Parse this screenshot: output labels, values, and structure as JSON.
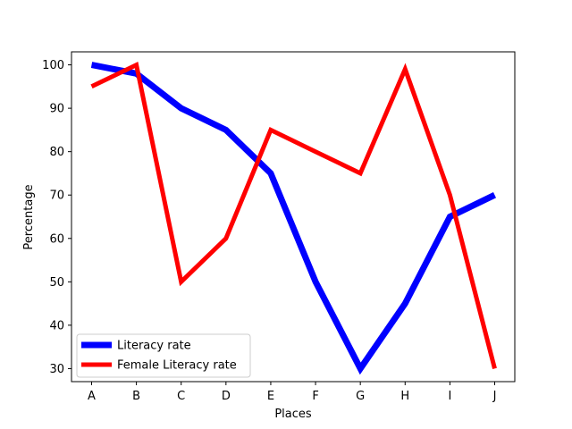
{
  "chart_data": {
    "type": "line",
    "title": "",
    "xlabel": "Places",
    "ylabel": "Percentage",
    "categories": [
      "A",
      "B",
      "C",
      "D",
      "E",
      "F",
      "G",
      "H",
      "I",
      "J"
    ],
    "ylim": [
      27,
      103
    ],
    "yticks": [
      30,
      40,
      50,
      60,
      70,
      80,
      90,
      100
    ],
    "grid": false,
    "legend_position": "lower-left",
    "series": [
      {
        "name": "Literacy rate",
        "color": "#0000ff",
        "values": [
          100,
          98,
          90,
          85,
          75,
          50,
          30,
          45,
          65,
          70
        ]
      },
      {
        "name": "Female Literacy rate",
        "color": "#ff0000",
        "values": [
          95,
          100,
          50,
          60,
          85,
          80,
          75,
          99,
          70,
          30
        ]
      }
    ]
  }
}
